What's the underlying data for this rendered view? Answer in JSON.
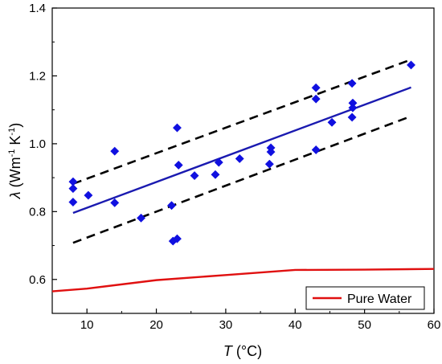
{
  "chart_data": {
    "type": "scatter",
    "title": "",
    "xlabel_italic": "T",
    "xlabel_rest": " (°C)",
    "ylabel_sym": "λ",
    "ylabel_open": " (Wm",
    "ylabel_exp1": "-1",
    "ylabel_mid": " K",
    "ylabel_exp2": "-1",
    "ylabel_close": ")",
    "xlim": [
      5,
      60
    ],
    "ylim": [
      0.5,
      1.4
    ],
    "xticks": [
      10,
      20,
      30,
      40,
      50,
      60
    ],
    "yticks": [
      0.6,
      0.8,
      1.0,
      1.2,
      1.4
    ],
    "xtick_labels": [
      "10",
      "20",
      "30",
      "40",
      "50",
      "60"
    ],
    "ytick_labels": [
      "0.6",
      "0.8",
      "1.0",
      "1.2",
      "1.4"
    ],
    "grid": false,
    "legend_position": "bottom-right",
    "series": [
      {
        "type": "scatter",
        "marker": "diamond",
        "color": "#1010e0",
        "points": [
          [
            8,
            0.888
          ],
          [
            8,
            0.868
          ],
          [
            8,
            0.828
          ],
          [
            10.2,
            0.848
          ],
          [
            14,
            0.978
          ],
          [
            14,
            0.826
          ],
          [
            17.8,
            0.781
          ],
          [
            22.2,
            0.818
          ],
          [
            22.4,
            0.713
          ],
          [
            23,
            0.72
          ],
          [
            23,
            1.047
          ],
          [
            23.2,
            0.937
          ],
          [
            25.5,
            0.906
          ],
          [
            28.5,
            0.909
          ],
          [
            29,
            0.945
          ],
          [
            32,
            0.956
          ],
          [
            36.3,
            0.94
          ],
          [
            36.5,
            0.988
          ],
          [
            36.5,
            0.976
          ],
          [
            43,
            1.165
          ],
          [
            43,
            1.132
          ],
          [
            43,
            0.982
          ],
          [
            45.3,
            1.063
          ],
          [
            48.2,
            1.178
          ],
          [
            48.3,
            1.12
          ],
          [
            48.3,
            1.106
          ],
          [
            48.2,
            1.078
          ],
          [
            56.7,
            1.232
          ]
        ]
      },
      {
        "type": "line",
        "style": "solid",
        "color": "#1a1ab0",
        "points": [
          [
            8,
            0.796
          ],
          [
            56.7,
            1.166
          ]
        ]
      },
      {
        "type": "line",
        "style": "dashed",
        "color": "#000000",
        "points": [
          [
            8,
            0.882
          ],
          [
            56.3,
            1.245
          ]
        ]
      },
      {
        "type": "line",
        "style": "dashed",
        "color": "#000000",
        "points": [
          [
            8,
            0.708
          ],
          [
            56.3,
            1.078
          ]
        ]
      },
      {
        "name": "Pure Water",
        "type": "line",
        "style": "solid",
        "color": "#e01010",
        "points": [
          [
            5,
            0.565
          ],
          [
            10,
            0.573
          ],
          [
            20,
            0.598
          ],
          [
            30,
            0.613
          ],
          [
            40,
            0.628
          ],
          [
            50,
            0.629
          ],
          [
            60,
            0.631
          ]
        ]
      }
    ]
  }
}
